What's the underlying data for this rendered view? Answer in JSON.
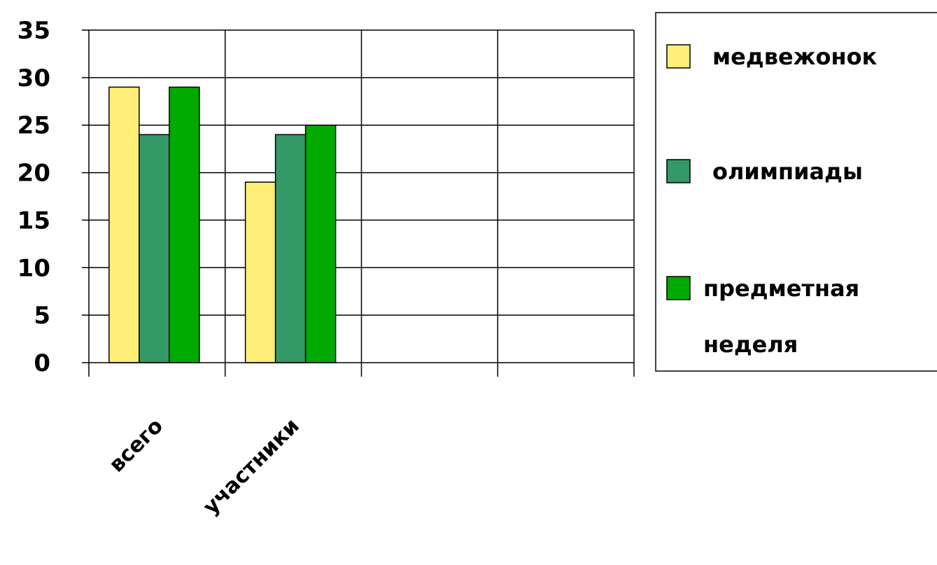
{
  "chart_data": {
    "type": "bar",
    "categories": [
      "всего",
      "участники",
      "",
      ""
    ],
    "series": [
      {
        "name": "медвежонок",
        "values": [
          29,
          19,
          null,
          null
        ],
        "color": "#FFEE77"
      },
      {
        "name": "олимпиады",
        "values": [
          24,
          24,
          null,
          null
        ],
        "color": "#339966"
      },
      {
        "name": "предметная неделя",
        "values": [
          29,
          25,
          null,
          null
        ],
        "color": "#00AA00"
      }
    ],
    "legend_lines": [
      [
        "медвежонок"
      ],
      [
        "олимпиады"
      ],
      [
        "предметная",
        "неделя"
      ]
    ],
    "ylim": [
      0,
      35
    ],
    "yticks": [
      0,
      5,
      10,
      15,
      20,
      25,
      30,
      35
    ],
    "grid": true,
    "legend_position": "right",
    "title": "",
    "xlabel": "",
    "ylabel": ""
  }
}
